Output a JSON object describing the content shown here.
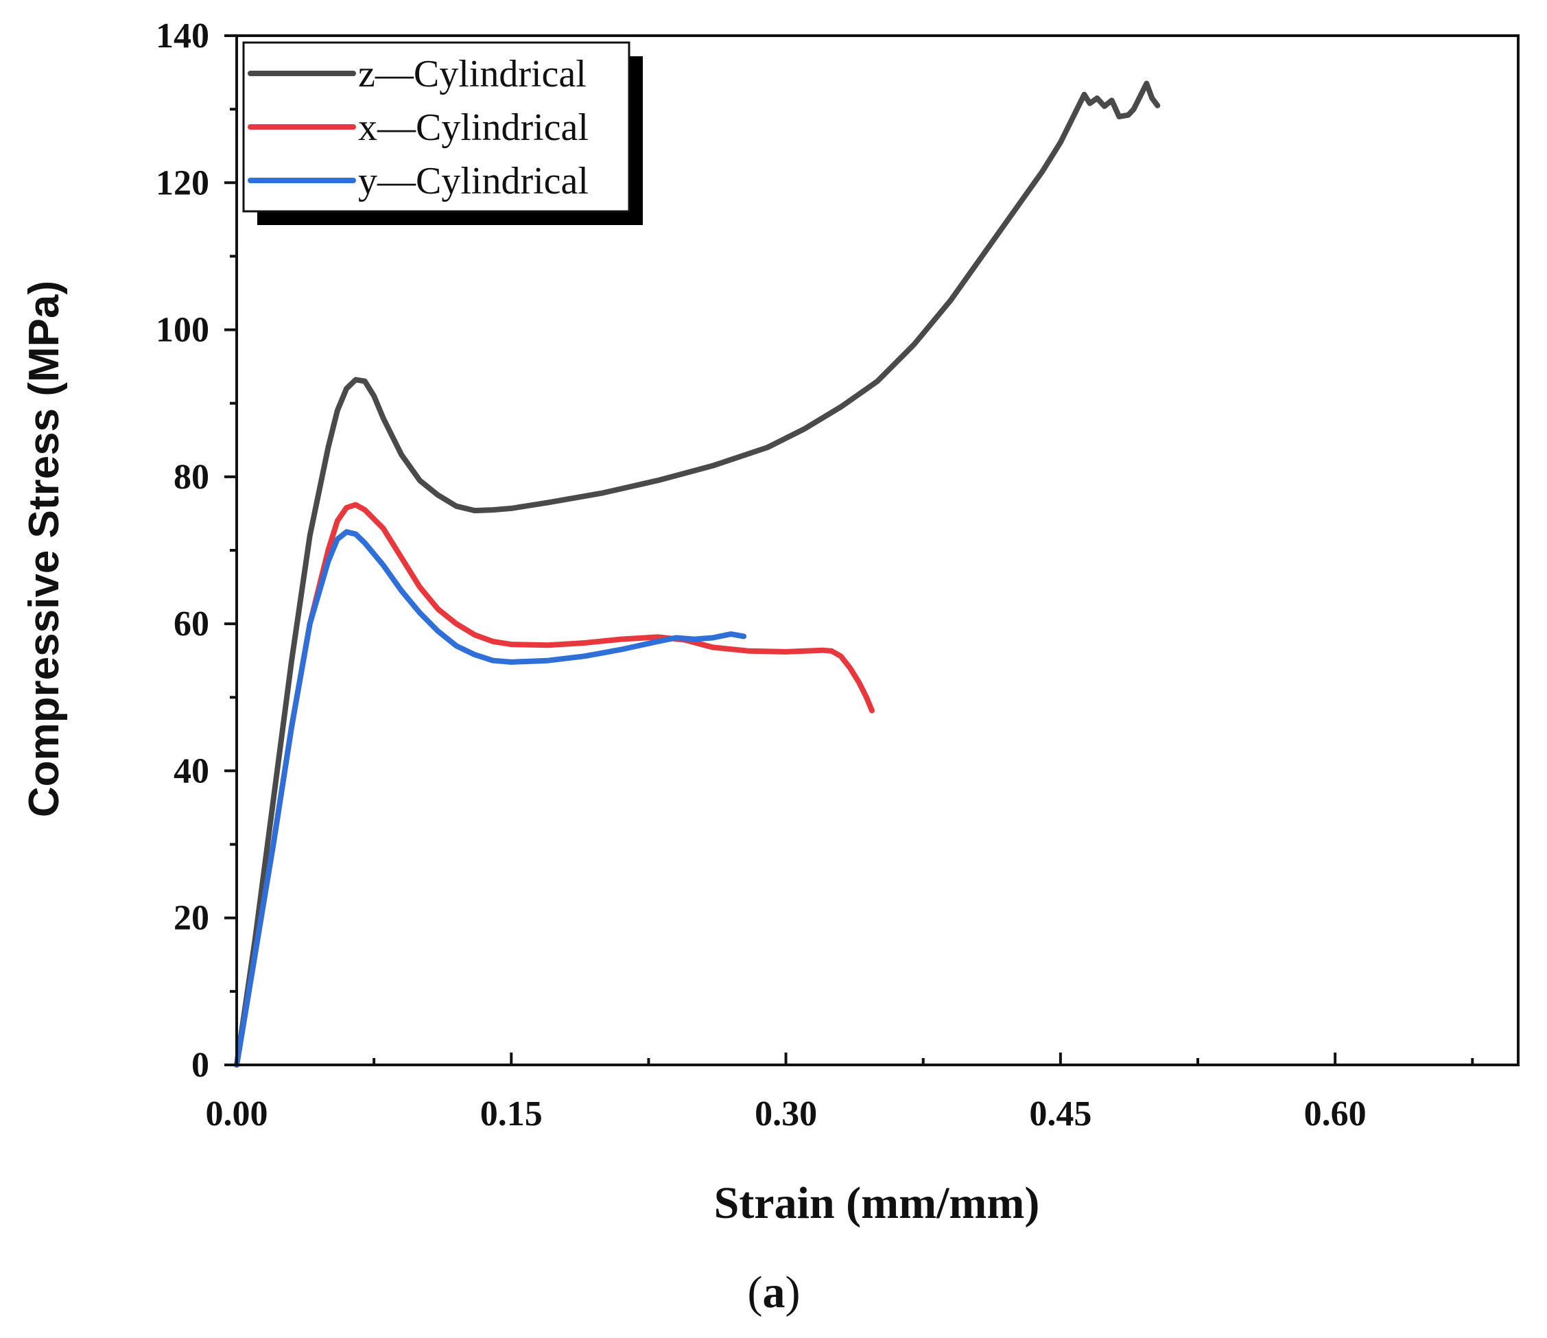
{
  "chart_data": {
    "type": "line",
    "title": "",
    "xlabel": "Strain (mm/mm)",
    "ylabel": "Compressive Stress (MPa)",
    "xlim": [
      0,
      0.7
    ],
    "ylim": [
      0,
      140
    ],
    "x_ticks": [
      0.0,
      0.15,
      0.3,
      0.45,
      0.6
    ],
    "x_tick_labels": [
      "0.00",
      "0.15",
      "0.30",
      "0.45",
      "0.60"
    ],
    "x_minor_ticks": [
      0.075,
      0.225,
      0.375,
      0.525,
      0.675
    ],
    "y_ticks": [
      0,
      20,
      40,
      60,
      80,
      100,
      120,
      140
    ],
    "y_tick_labels": [
      "0",
      "20",
      "40",
      "60",
      "80",
      "100",
      "120",
      "140"
    ],
    "y_minor_ticks": [
      10,
      30,
      50,
      70,
      90,
      110,
      130
    ],
    "grid": false,
    "legend_position": "top-left",
    "panel_label": {
      "open": "(",
      "letter": "a",
      "close": ")"
    },
    "series": [
      {
        "name": "z—Cylindrical",
        "color": "#4a4a4a",
        "points": [
          [
            0,
            0
          ],
          [
            0.01,
            17
          ],
          [
            0.02,
            36
          ],
          [
            0.03,
            55
          ],
          [
            0.04,
            72
          ],
          [
            0.05,
            84
          ],
          [
            0.055,
            89
          ],
          [
            0.06,
            92
          ],
          [
            0.065,
            93.2
          ],
          [
            0.07,
            93
          ],
          [
            0.075,
            91
          ],
          [
            0.08,
            88
          ],
          [
            0.09,
            83
          ],
          [
            0.1,
            79.5
          ],
          [
            0.11,
            77.5
          ],
          [
            0.12,
            76
          ],
          [
            0.13,
            75.4
          ],
          [
            0.14,
            75.5
          ],
          [
            0.15,
            75.7
          ],
          [
            0.17,
            76.5
          ],
          [
            0.2,
            77.8
          ],
          [
            0.23,
            79.5
          ],
          [
            0.26,
            81.5
          ],
          [
            0.29,
            84
          ],
          [
            0.31,
            86.5
          ],
          [
            0.33,
            89.5
          ],
          [
            0.35,
            93
          ],
          [
            0.37,
            98
          ],
          [
            0.39,
            104
          ],
          [
            0.41,
            111
          ],
          [
            0.43,
            118
          ],
          [
            0.44,
            121.5
          ],
          [
            0.45,
            125.5
          ],
          [
            0.455,
            128
          ],
          [
            0.46,
            130.5
          ],
          [
            0.463,
            132
          ],
          [
            0.466,
            130.8
          ],
          [
            0.47,
            131.5
          ],
          [
            0.474,
            130.4
          ],
          [
            0.478,
            131.2
          ],
          [
            0.482,
            129
          ],
          [
            0.487,
            129.2
          ],
          [
            0.49,
            130
          ],
          [
            0.494,
            132
          ],
          [
            0.497,
            133.5
          ],
          [
            0.5,
            131.5
          ],
          [
            0.503,
            130.5
          ]
        ]
      },
      {
        "name": "x—Cylindrical",
        "color": "#e8373d",
        "points": [
          [
            0,
            0
          ],
          [
            0.01,
            15
          ],
          [
            0.02,
            30
          ],
          [
            0.03,
            46
          ],
          [
            0.04,
            60
          ],
          [
            0.05,
            70
          ],
          [
            0.055,
            74
          ],
          [
            0.06,
            75.8
          ],
          [
            0.065,
            76.2
          ],
          [
            0.07,
            75.5
          ],
          [
            0.08,
            73
          ],
          [
            0.09,
            69
          ],
          [
            0.1,
            65
          ],
          [
            0.11,
            62
          ],
          [
            0.12,
            60
          ],
          [
            0.13,
            58.5
          ],
          [
            0.14,
            57.6
          ],
          [
            0.15,
            57.2
          ],
          [
            0.17,
            57.1
          ],
          [
            0.19,
            57.4
          ],
          [
            0.21,
            57.9
          ],
          [
            0.23,
            58.2
          ],
          [
            0.245,
            57.8
          ],
          [
            0.26,
            56.8
          ],
          [
            0.28,
            56.3
          ],
          [
            0.3,
            56.2
          ],
          [
            0.32,
            56.4
          ],
          [
            0.325,
            56.3
          ],
          [
            0.33,
            55.6
          ],
          [
            0.335,
            54
          ],
          [
            0.34,
            52
          ],
          [
            0.344,
            50
          ],
          [
            0.347,
            48.2
          ]
        ]
      },
      {
        "name": "y—Cylindrical",
        "color": "#2f6fd8",
        "points": [
          [
            0,
            0
          ],
          [
            0.01,
            15
          ],
          [
            0.02,
            30
          ],
          [
            0.03,
            46
          ],
          [
            0.04,
            60
          ],
          [
            0.05,
            68.5
          ],
          [
            0.055,
            71.5
          ],
          [
            0.06,
            72.5
          ],
          [
            0.065,
            72.2
          ],
          [
            0.07,
            71
          ],
          [
            0.08,
            68
          ],
          [
            0.09,
            64.5
          ],
          [
            0.1,
            61.5
          ],
          [
            0.11,
            59
          ],
          [
            0.12,
            57
          ],
          [
            0.13,
            55.8
          ],
          [
            0.14,
            55
          ],
          [
            0.15,
            54.8
          ],
          [
            0.17,
            55
          ],
          [
            0.19,
            55.6
          ],
          [
            0.21,
            56.5
          ],
          [
            0.23,
            57.6
          ],
          [
            0.24,
            58.1
          ],
          [
            0.25,
            57.9
          ],
          [
            0.26,
            58.1
          ],
          [
            0.27,
            58.6
          ],
          [
            0.277,
            58.3
          ]
        ]
      }
    ]
  }
}
